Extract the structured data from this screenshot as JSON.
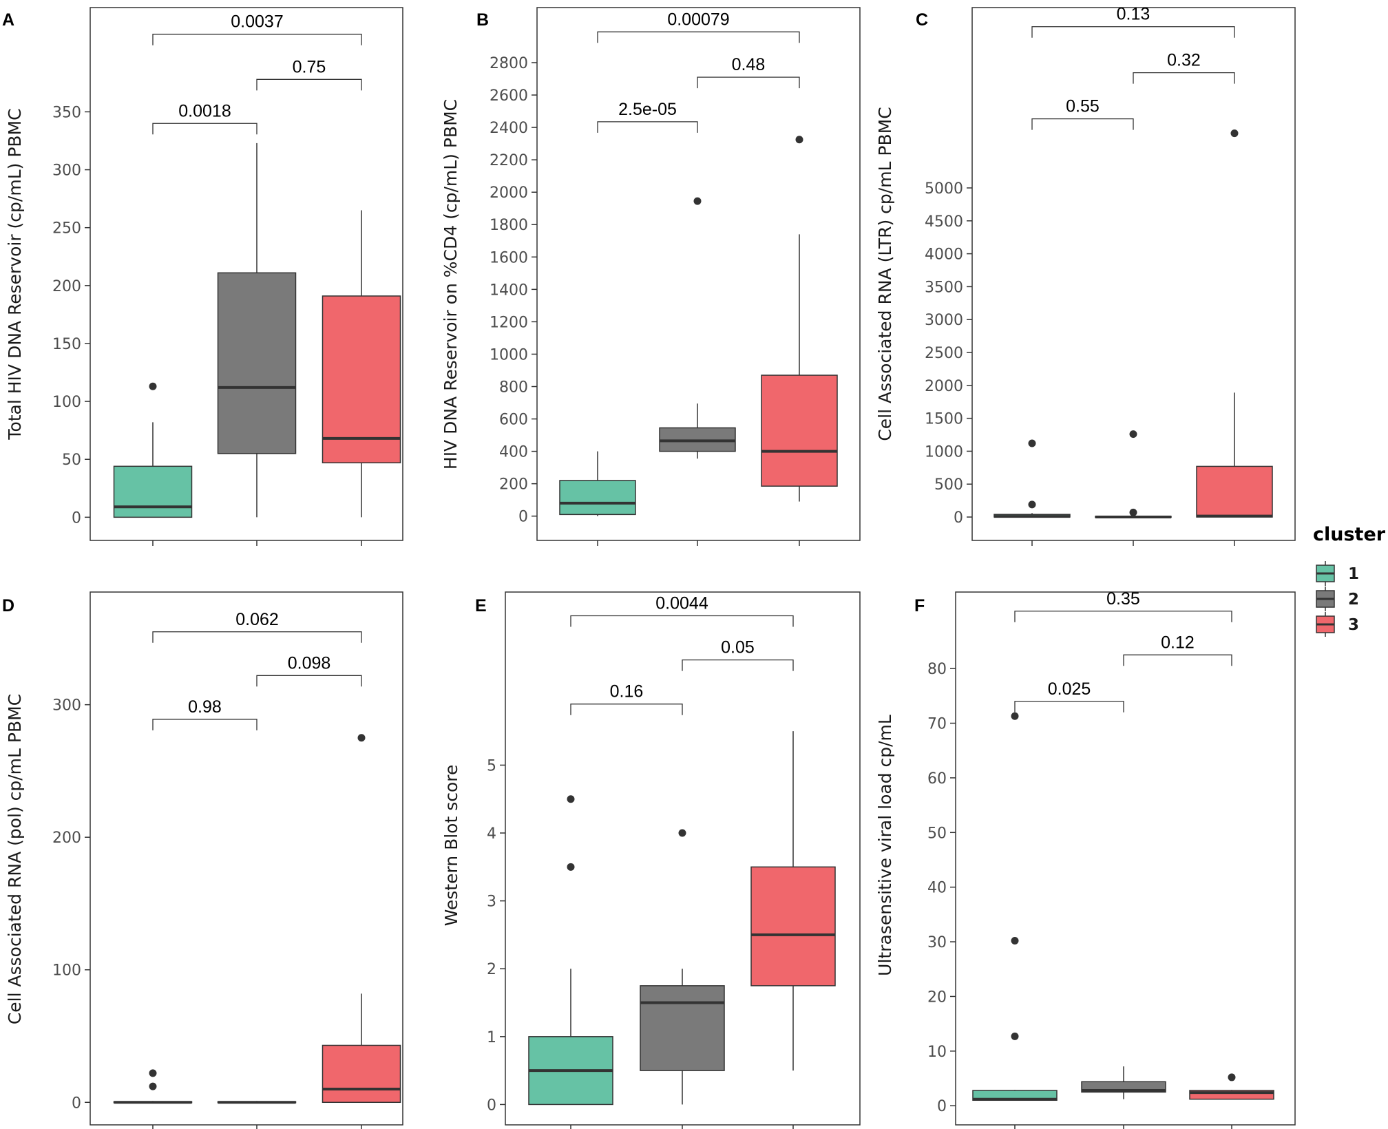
{
  "chart_data": [
    {
      "type": "box",
      "panel": "A",
      "ylabel": "Total HIV DNA Reservoir (cp/mL) PBMC",
      "ylim": [
        -20,
        440
      ],
      "yticks": [
        0,
        50,
        100,
        150,
        200,
        250,
        300,
        350
      ],
      "ytick_labels": [
        "0",
        "50",
        "100",
        "150",
        "200",
        "250",
        "300",
        "350"
      ],
      "boxes": [
        {
          "cluster": "1",
          "q1": 0,
          "median": 9,
          "q3": 44,
          "wlo": 0,
          "whi": 82,
          "outliers": [
            113
          ]
        },
        {
          "cluster": "2",
          "q1": 55,
          "median": 112,
          "q3": 211,
          "wlo": 0,
          "whi": 323,
          "outliers": []
        },
        {
          "cluster": "3",
          "q1": 47,
          "median": 68,
          "q3": 191,
          "wlo": 0,
          "whi": 265,
          "outliers": []
        }
      ],
      "comparisons": [
        {
          "from": 1,
          "to": 2,
          "label": "0.0018",
          "y": 340
        },
        {
          "from": 2,
          "to": 3,
          "label": "0.75",
          "y": 378
        },
        {
          "from": 1,
          "to": 3,
          "label": "0.0037",
          "y": 417
        }
      ]
    },
    {
      "type": "box",
      "panel": "B",
      "ylabel": "HIV DNA Reservoir on %CD4 (cp/mL) PBMC",
      "ylim": [
        -150,
        3140
      ],
      "yticks": [
        0,
        200,
        400,
        600,
        800,
        1000,
        1200,
        1400,
        1600,
        1800,
        2000,
        2200,
        2400,
        2600,
        2800
      ],
      "ytick_labels": [
        "0",
        "200",
        "400",
        "600",
        "800",
        "1000",
        "1200",
        "1400",
        "1600",
        "1800",
        "2000",
        "2200",
        "2400",
        "2600",
        "2800"
      ],
      "boxes": [
        {
          "cluster": "1",
          "q1": 10,
          "median": 80,
          "q3": 220,
          "wlo": 0,
          "whi": 400,
          "outliers": []
        },
        {
          "cluster": "2",
          "q1": 400,
          "median": 465,
          "q3": 545,
          "wlo": 355,
          "whi": 695,
          "outliers": [
            1945
          ]
        },
        {
          "cluster": "3",
          "q1": 185,
          "median": 400,
          "q3": 870,
          "wlo": 90,
          "whi": 1740,
          "outliers": [
            2325
          ]
        }
      ],
      "comparisons": [
        {
          "from": 1,
          "to": 2,
          "label": "2.5e-05",
          "y": 2435
        },
        {
          "from": 2,
          "to": 3,
          "label": "0.48",
          "y": 2710
        },
        {
          "from": 1,
          "to": 3,
          "label": "0.00079",
          "y": 2990
        }
      ]
    },
    {
      "type": "box",
      "panel": "C",
      "ylabel": "Cell Associated RNA (LTR) cp/mL PBMC",
      "ylim": [
        -355,
        7740
      ],
      "yticks": [
        0,
        500,
        1000,
        1500,
        2000,
        2500,
        3000,
        3500,
        4000,
        4500,
        5000
      ],
      "ytick_labels": [
        "0",
        "500",
        "1000",
        "1500",
        "2000",
        "2500",
        "3000",
        "3500",
        "4000",
        "4500",
        "5000"
      ],
      "boxes": [
        {
          "cluster": "1",
          "q1": 0,
          "median": 10,
          "q3": 40,
          "wlo": 0,
          "whi": 60,
          "outliers": [
            190,
            1120
          ]
        },
        {
          "cluster": "2",
          "q1": 0,
          "median": 0,
          "q3": 10,
          "wlo": 0,
          "whi": 20,
          "outliers": [
            70,
            1260
          ]
        },
        {
          "cluster": "3",
          "q1": 0,
          "median": 15,
          "q3": 770,
          "wlo": 0,
          "whi": 1890,
          "outliers": [
            5830
          ]
        }
      ],
      "comparisons": [
        {
          "from": 1,
          "to": 2,
          "label": "0.55",
          "y": 6050
        },
        {
          "from": 2,
          "to": 3,
          "label": "0.32",
          "y": 6750
        },
        {
          "from": 1,
          "to": 3,
          "label": "0.13",
          "y": 7450
        }
      ]
    },
    {
      "type": "box",
      "panel": "D",
      "ylabel": "Cell Associated RNA (pol) cp/mL PBMC",
      "ylim": [
        -17,
        385
      ],
      "yticks": [
        0,
        100,
        200,
        300
      ],
      "ytick_labels": [
        "0",
        "100",
        "200",
        "300"
      ],
      "boxes": [
        {
          "cluster": "1",
          "q1": 0,
          "median": 0,
          "q3": 0.5,
          "wlo": 0,
          "whi": 1,
          "outliers": [
            12,
            22
          ]
        },
        {
          "cluster": "2",
          "q1": 0,
          "median": 0,
          "q3": 0.5,
          "wlo": 0,
          "whi": 1,
          "outliers": []
        },
        {
          "cluster": "3",
          "q1": 0,
          "median": 10,
          "q3": 43,
          "wlo": 0,
          "whi": 82,
          "outliers": [
            275
          ]
        }
      ],
      "comparisons": [
        {
          "from": 1,
          "to": 2,
          "label": "0.98",
          "y": 289
        },
        {
          "from": 2,
          "to": 3,
          "label": "0.098",
          "y": 322
        },
        {
          "from": 1,
          "to": 3,
          "label": "0.062",
          "y": 355
        }
      ]
    },
    {
      "type": "box",
      "panel": "E",
      "ylabel": "Western Blot score",
      "ylim": [
        -0.3,
        7.55
      ],
      "yticks": [
        0,
        1,
        2,
        3,
        4,
        5
      ],
      "ytick_labels": [
        "0",
        "1",
        "2",
        "3",
        "4",
        "5"
      ],
      "boxes": [
        {
          "cluster": "1",
          "q1": 0,
          "median": 0.5,
          "q3": 1,
          "wlo": 0,
          "whi": 2,
          "outliers": [
            3.5,
            4.5
          ]
        },
        {
          "cluster": "2",
          "q1": 0.5,
          "median": 1.5,
          "q3": 1.75,
          "wlo": 0,
          "whi": 2,
          "outliers": [
            4
          ]
        },
        {
          "cluster": "3",
          "q1": 1.75,
          "median": 2.5,
          "q3": 3.5,
          "wlo": 0.5,
          "whi": 5.5,
          "outliers": []
        }
      ],
      "comparisons": [
        {
          "from": 1,
          "to": 2,
          "label": "0.16",
          "y": 5.9
        },
        {
          "from": 2,
          "to": 3,
          "label": "0.05",
          "y": 6.55
        },
        {
          "from": 1,
          "to": 3,
          "label": "0.0044",
          "y": 7.2
        }
      ]
    },
    {
      "type": "box",
      "panel": "F",
      "ylabel": "Ultrasensitive viral load cp/mL",
      "ylim": [
        -3.5,
        94
      ],
      "yticks": [
        0,
        10,
        20,
        30,
        40,
        50,
        60,
        70,
        80
      ],
      "ytick_labels": [
        "0",
        "10",
        "20",
        "30",
        "40",
        "50",
        "60",
        "70",
        "80"
      ],
      "boxes": [
        {
          "cluster": "1",
          "q1": 1,
          "median": 1.2,
          "q3": 2.8,
          "wlo": 1,
          "whi": 2.9,
          "outliers": [
            12.7,
            30.2,
            71.3
          ]
        },
        {
          "cluster": "2",
          "q1": 2.5,
          "median": 2.8,
          "q3": 4.4,
          "wlo": 1.2,
          "whi": 7.2,
          "outliers": []
        },
        {
          "cluster": "3",
          "q1": 1.2,
          "median": 2.4,
          "q3": 2.8,
          "wlo": 1.2,
          "whi": 2.9,
          "outliers": [
            5.2
          ]
        }
      ],
      "comparisons": [
        {
          "from": 1,
          "to": 2,
          "label": "0.025",
          "y": 74
        },
        {
          "from": 2,
          "to": 3,
          "label": "0.12",
          "y": 82.5
        },
        {
          "from": 1,
          "to": 3,
          "label": "0.35",
          "y": 90.5
        }
      ]
    }
  ],
  "legend": {
    "title": "cluster",
    "items": [
      {
        "label": "1",
        "color": "#66c2a5"
      },
      {
        "label": "2",
        "color": "#7a7a7a"
      },
      {
        "label": "3",
        "color": "#f0676c"
      }
    ]
  },
  "colors": {
    "1": "#66c2a5",
    "2": "#7a7a7a",
    "3": "#f0676c"
  }
}
